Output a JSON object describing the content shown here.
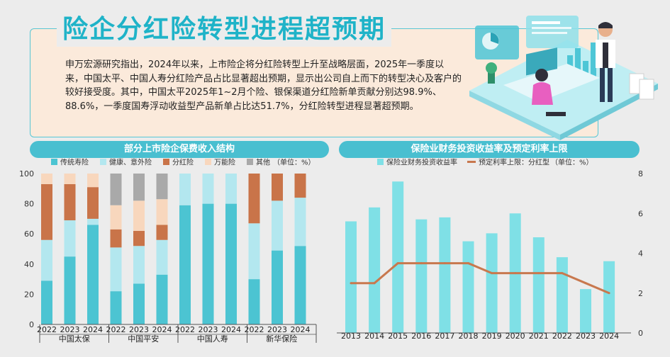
{
  "header": {
    "title": "险企分红险转型进程超预期",
    "paragraph": "申万宏源研究指出，2024年以来，上市险企将分红险转型上升至战略层面，2025年一季度以来，中国太平、中国人寿分红险产品占比显著超出预期，显示出公司自上而下的转型决心及客户的较好接受度。其中，中国太平2025年1~2月个险、银保渠道分红险新单贡献分别达98.9%、88.6%，一季度国寿浮动收益型产品新单占比达51.7%，分红险转型进程显著超预期。"
  },
  "chart_data": [
    {
      "type": "bar",
      "stacked": true,
      "title": "部分上市险企保费收入结构",
      "unit_note": "（单位：%）",
      "ylim": [
        0,
        100
      ],
      "yticks": [
        0,
        20,
        40,
        60,
        80,
        100
      ],
      "groups": [
        {
          "company": "中国太保",
          "years": [
            "2022",
            "2023",
            "2024"
          ]
        },
        {
          "company": "中国平安",
          "years": [
            "2022",
            "2023",
            "2024"
          ]
        },
        {
          "company": "中国人寿",
          "years": [
            "2022",
            "2023",
            "2024"
          ]
        },
        {
          "company": "新华保险",
          "years": [
            "2022",
            "2023",
            "2024"
          ]
        }
      ],
      "series": [
        {
          "name": "传统寿险",
          "color": "#4cc4d2",
          "values": [
            29,
            45,
            66,
            22,
            27,
            33,
            79,
            80,
            80,
            30,
            49,
            52
          ]
        },
        {
          "name": "健康、意外险",
          "color": "#b3e7ef",
          "values": [
            27,
            24,
            4,
            29,
            25,
            23,
            21,
            20,
            20,
            37,
            33,
            32
          ]
        },
        {
          "name": "分红险",
          "color": "#c97449",
          "values": [
            37,
            24,
            21,
            12,
            10,
            10,
            0,
            0,
            0,
            33,
            18,
            16
          ]
        },
        {
          "name": "万能险",
          "color": "#f8d7bd",
          "values": [
            7,
            7,
            9,
            16,
            20,
            17,
            0,
            0,
            0,
            0,
            0,
            0
          ]
        },
        {
          "name": "其他",
          "color": "#a9a9a9",
          "values": [
            0,
            0,
            0,
            21,
            18,
            17,
            0,
            0,
            0,
            0,
            0,
            0
          ]
        }
      ]
    },
    {
      "type": "bar+line",
      "title": "保险业财务投资收益率及预定利率上限",
      "unit_note": "（单位：%）",
      "x": [
        "2013",
        "2014",
        "2015",
        "2016",
        "2017",
        "2018",
        "2019",
        "2020",
        "2021",
        "2022",
        "2023",
        "2024"
      ],
      "ylim": [
        0,
        8
      ],
      "yticks": [
        0,
        2,
        4,
        6,
        8
      ],
      "series": [
        {
          "name": "保险业财务投资收益率",
          "type": "bar",
          "color": "#7fe0e6",
          "values": [
            5.6,
            6.3,
            7.6,
            5.7,
            5.8,
            4.6,
            5.0,
            6.0,
            4.8,
            3.8,
            2.2,
            3.6
          ]
        },
        {
          "name": "预定利率上限：分红型",
          "type": "line",
          "color": "#c8784e",
          "values": [
            2.5,
            2.5,
            3.5,
            3.5,
            3.5,
            3.5,
            3.0,
            3.0,
            3.0,
            3.0,
            2.5,
            2.0
          ]
        }
      ]
    }
  ]
}
